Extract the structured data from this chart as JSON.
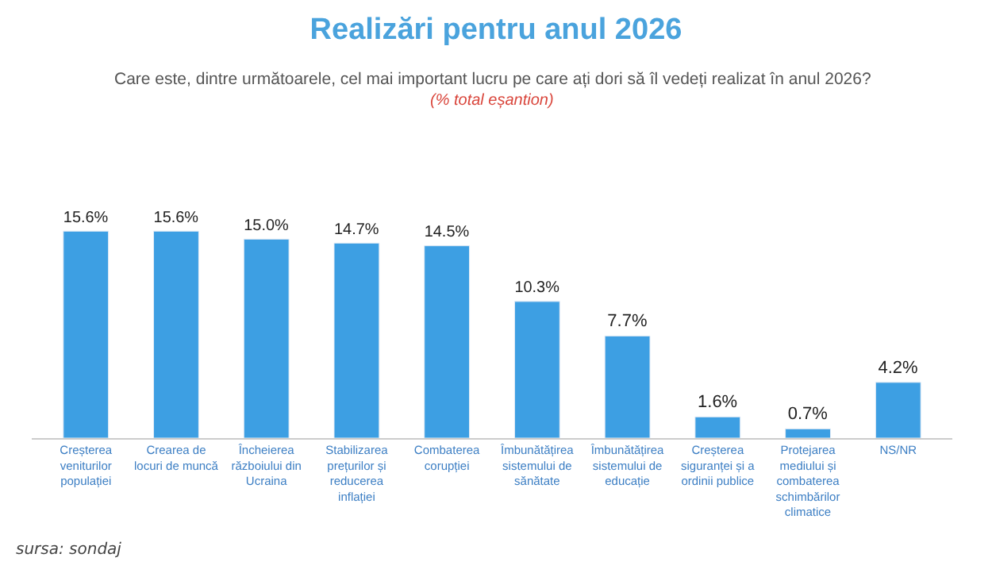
{
  "chart_data": {
    "type": "bar",
    "title": "Realizări pentru anul 2026",
    "subtitle": "Care este, dintre următoarele, cel mai important lucru pe care ați dori să îl vedeți realizat în anul 2026?",
    "categories": [
      "Creșterea veniturilor populației",
      "Crearea de locuri de muncă",
      "Încheierea războiului din Ucraina",
      "Stabilizarea prețurilor și reducerea inflației",
      "Combaterea corupției",
      "Îmbunătățirea sistemului de sănătate",
      "Îmbunătățirea sistemului de educație",
      "Creșterea siguranței și a ordinii publice",
      "Protejarea mediului și combaterea schimbărilor climatice",
      "NS/NR"
    ],
    "values": [
      15.6,
      15.6,
      15.0,
      14.7,
      14.5,
      10.3,
      7.7,
      1.6,
      0.7,
      4.2
    ],
    "value_labels": [
      "15.6%",
      "15.6%",
      "15.0%",
      "14.7%",
      "14.5%",
      "10.3%",
      "7.7%",
      "1.6%",
      "0.7%",
      "4.2%"
    ],
    "color": "#3d9fe3",
    "annotations": [
      "(% total eșantion)",
      "sursa: sondaj"
    ]
  }
}
